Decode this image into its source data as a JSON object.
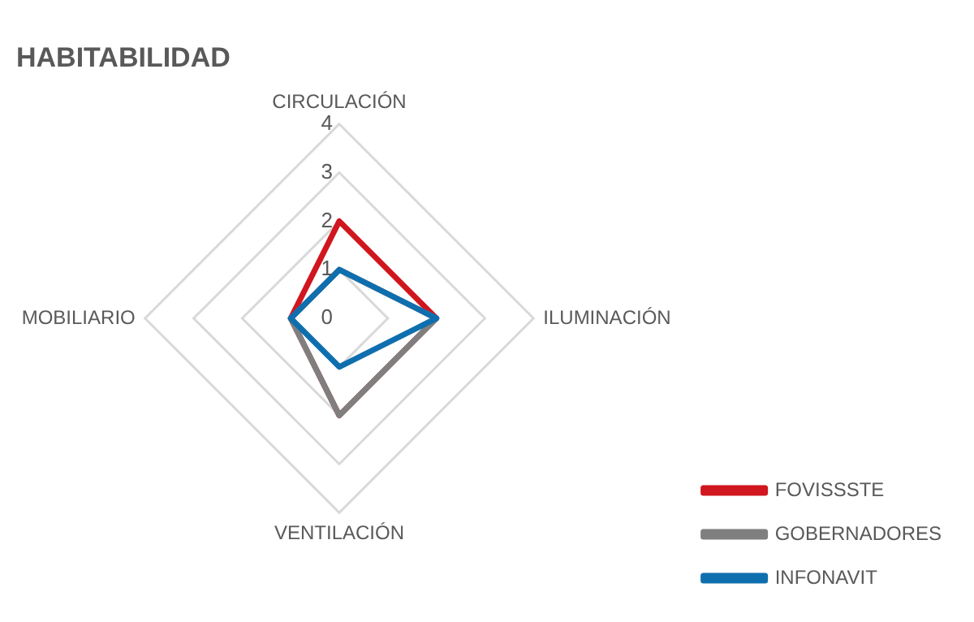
{
  "chart_data": {
    "type": "radar",
    "title": "HABITABILIDAD",
    "categories": [
      "CIRCULACIÓN",
      "ILUMINACIÓN",
      "VENTILACIÓN",
      "MOBILIARIO"
    ],
    "ylim": [
      0,
      4
    ],
    "yticks": [
      0,
      1,
      2,
      3,
      4
    ],
    "grid": true,
    "legend": "bottom right",
    "marker": "none",
    "series": [
      {
        "name": "FOVISSSTE",
        "color": "#d0161e",
        "values": [
          2,
          2,
          2,
          1
        ]
      },
      {
        "name": "GOBERNADORES",
        "color": "#7f7f7f",
        "values": [
          1,
          2,
          2,
          1
        ]
      },
      {
        "name": "INFONAVIT",
        "color": "#0f6fae",
        "values": [
          1,
          2,
          1,
          1
        ]
      }
    ]
  }
}
